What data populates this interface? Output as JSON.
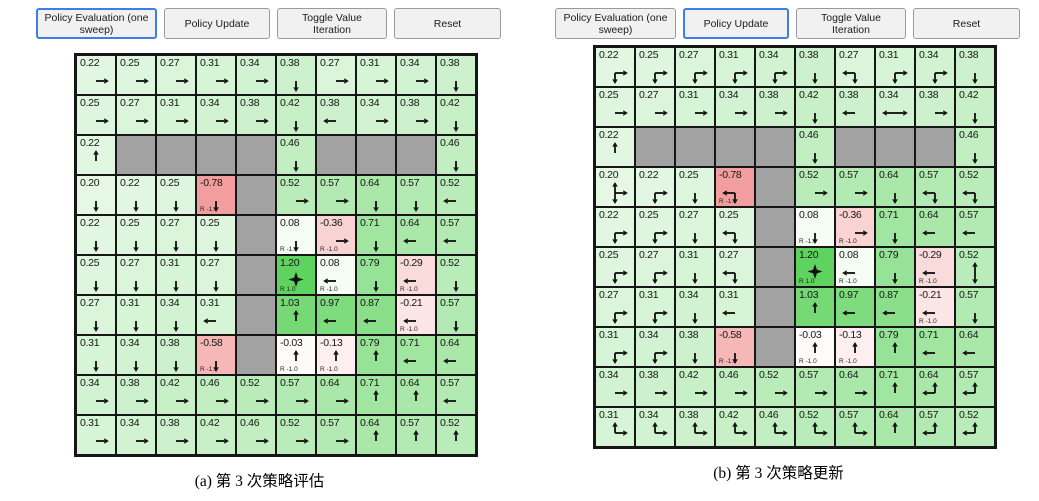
{
  "colors": {
    "value_positive": "#5fd35f",
    "value_negative": "#f29c9c",
    "wall": "#a2a2a2",
    "grid_line": "#161616",
    "active_button_border": "#3b7de9",
    "button_bg": "#f1f1f1",
    "arrow": "#111111"
  },
  "panels": [
    {
      "id": "left",
      "caption": "(a) 第 3 次策略评估",
      "buttons": [
        {
          "name": "policy-evaluation-button",
          "label": "Policy Evaluation (one sweep)",
          "active": true
        },
        {
          "name": "policy-update-button",
          "label": "Policy Update",
          "active": false
        },
        {
          "name": "toggle-value-iteration-button",
          "label": "Toggle Value Iteration",
          "active": false
        },
        {
          "name": "reset-button",
          "label": "Reset",
          "active": false
        }
      ],
      "grid": {
        "rows": 10,
        "cols": 10,
        "cells": [
          [
            {
              "v": "0.22",
              "a": "R"
            },
            {
              "v": "0.25",
              "a": "R"
            },
            {
              "v": "0.27",
              "a": "R"
            },
            {
              "v": "0.31",
              "a": "R"
            },
            {
              "v": "0.34",
              "a": "R"
            },
            {
              "v": "0.38",
              "a": "D"
            },
            {
              "v": "0.27",
              "a": "R"
            },
            {
              "v": "0.31",
              "a": "R"
            },
            {
              "v": "0.34",
              "a": "R"
            },
            {
              "v": "0.38",
              "a": "D"
            }
          ],
          [
            {
              "v": "0.25",
              "a": "R"
            },
            {
              "v": "0.27",
              "a": "R"
            },
            {
              "v": "0.31",
              "a": "R"
            },
            {
              "v": "0.34",
              "a": "R"
            },
            {
              "v": "0.38",
              "a": "R"
            },
            {
              "v": "0.42",
              "a": "D"
            },
            {
              "v": "0.38",
              "a": "L"
            },
            {
              "v": "0.34",
              "a": "R"
            },
            {
              "v": "0.38",
              "a": "R"
            },
            {
              "v": "0.42",
              "a": "D"
            }
          ],
          [
            {
              "v": "0.22",
              "a": "U"
            },
            "W",
            "W",
            "W",
            "W",
            {
              "v": "0.46",
              "a": "D"
            },
            "W",
            "W",
            "W",
            {
              "v": "0.46",
              "a": "D"
            }
          ],
          [
            {
              "v": "0.20",
              "a": "D"
            },
            {
              "v": "0.22",
              "a": "D"
            },
            {
              "v": "0.25",
              "a": "D"
            },
            {
              "v": "-0.78",
              "a": "D",
              "r": "R -1.0"
            },
            "W",
            {
              "v": "0.52",
              "a": "R"
            },
            {
              "v": "0.57",
              "a": "R"
            },
            {
              "v": "0.64",
              "a": "D"
            },
            {
              "v": "0.57",
              "a": "D"
            },
            {
              "v": "0.52",
              "a": "L"
            }
          ],
          [
            {
              "v": "0.22",
              "a": "D"
            },
            {
              "v": "0.25",
              "a": "D"
            },
            {
              "v": "0.27",
              "a": "D"
            },
            {
              "v": "0.25",
              "a": "D"
            },
            "W",
            {
              "v": "0.08",
              "a": "D",
              "r": "R -1.0"
            },
            {
              "v": "-0.36",
              "a": "R",
              "r": "R -1.0"
            },
            {
              "v": "0.71",
              "a": "D"
            },
            {
              "v": "0.64",
              "a": "L"
            },
            {
              "v": "0.57",
              "a": "L"
            }
          ],
          [
            {
              "v": "0.25",
              "a": "D"
            },
            {
              "v": "0.27",
              "a": "D"
            },
            {
              "v": "0.31",
              "a": "D"
            },
            {
              "v": "0.27",
              "a": "D"
            },
            "W",
            {
              "v": "1.20",
              "a": "",
              "star": true,
              "r": "R 1.0"
            },
            {
              "v": "0.08",
              "a": "L",
              "r": "R -1.0"
            },
            {
              "v": "0.79",
              "a": "D"
            },
            {
              "v": "-0.29",
              "a": "L",
              "r": "R -1.0"
            },
            {
              "v": "0.52",
              "a": "D"
            }
          ],
          [
            {
              "v": "0.27",
              "a": "D"
            },
            {
              "v": "0.31",
              "a": "D"
            },
            {
              "v": "0.34",
              "a": "D"
            },
            {
              "v": "0.31",
              "a": "L"
            },
            "W",
            {
              "v": "1.03",
              "a": "U"
            },
            {
              "v": "0.97",
              "a": "L"
            },
            {
              "v": "0.87",
              "a": "L"
            },
            {
              "v": "-0.21",
              "a": "L",
              "r": "R -1.0"
            },
            {
              "v": "0.57",
              "a": "D"
            }
          ],
          [
            {
              "v": "0.31",
              "a": "D"
            },
            {
              "v": "0.34",
              "a": "D"
            },
            {
              "v": "0.38",
              "a": "D"
            },
            {
              "v": "-0.58",
              "a": "D",
              "r": "R -1.0"
            },
            "W",
            {
              "v": "-0.03",
              "a": "U",
              "r": "R -1.0"
            },
            {
              "v": "-0.13",
              "a": "U",
              "r": "R -1.0"
            },
            {
              "v": "0.79",
              "a": "U"
            },
            {
              "v": "0.71",
              "a": "L"
            },
            {
              "v": "0.64",
              "a": "L"
            }
          ],
          [
            {
              "v": "0.34",
              "a": "R"
            },
            {
              "v": "0.38",
              "a": "R"
            },
            {
              "v": "0.42",
              "a": "R"
            },
            {
              "v": "0.46",
              "a": "R"
            },
            {
              "v": "0.52",
              "a": "R"
            },
            {
              "v": "0.57",
              "a": "R"
            },
            {
              "v": "0.64",
              "a": "R"
            },
            {
              "v": "0.71",
              "a": "U"
            },
            {
              "v": "0.64",
              "a": "U"
            },
            {
              "v": "0.57",
              "a": "L"
            }
          ],
          [
            {
              "v": "0.31",
              "a": "R"
            },
            {
              "v": "0.34",
              "a": "R"
            },
            {
              "v": "0.38",
              "a": "R"
            },
            {
              "v": "0.42",
              "a": "R"
            },
            {
              "v": "0.46",
              "a": "R"
            },
            {
              "v": "0.52",
              "a": "R"
            },
            {
              "v": "0.57",
              "a": "R"
            },
            {
              "v": "0.64",
              "a": "U"
            },
            {
              "v": "0.57",
              "a": "U"
            },
            {
              "v": "0.52",
              "a": "U"
            }
          ]
        ]
      }
    },
    {
      "id": "right",
      "caption": "(b) 第 3 次策略更新",
      "buttons": [
        {
          "name": "policy-evaluation-button",
          "label": "Policy Evaluation (one sweep)",
          "active": false
        },
        {
          "name": "policy-update-button",
          "label": "Policy Update",
          "active": true
        },
        {
          "name": "toggle-value-iteration-button",
          "label": "Toggle Value Iteration",
          "active": false
        },
        {
          "name": "reset-button",
          "label": "Reset",
          "active": false
        }
      ],
      "grid": {
        "rows": 10,
        "cols": 10,
        "cells": [
          [
            {
              "v": "0.22",
              "a": "DR"
            },
            {
              "v": "0.25",
              "a": "DR"
            },
            {
              "v": "0.27",
              "a": "DR"
            },
            {
              "v": "0.31",
              "a": "DR"
            },
            {
              "v": "0.34",
              "a": "DR"
            },
            {
              "v": "0.38",
              "a": "D"
            },
            {
              "v": "0.27",
              "a": "DL"
            },
            {
              "v": "0.31",
              "a": "DR"
            },
            {
              "v": "0.34",
              "a": "DR"
            },
            {
              "v": "0.38",
              "a": "D"
            }
          ],
          [
            {
              "v": "0.25",
              "a": "R"
            },
            {
              "v": "0.27",
              "a": "R"
            },
            {
              "v": "0.31",
              "a": "R"
            },
            {
              "v": "0.34",
              "a": "R"
            },
            {
              "v": "0.38",
              "a": "R"
            },
            {
              "v": "0.42",
              "a": "D"
            },
            {
              "v": "0.38",
              "a": "L"
            },
            {
              "v": "0.34",
              "a": "LR"
            },
            {
              "v": "0.38",
              "a": "R"
            },
            {
              "v": "0.42",
              "a": "D"
            }
          ],
          [
            {
              "v": "0.22",
              "a": "U"
            },
            "W",
            "W",
            "W",
            "W",
            {
              "v": "0.46",
              "a": "D"
            },
            "W",
            "W",
            "W",
            {
              "v": "0.46",
              "a": "D"
            }
          ],
          [
            {
              "v": "0.20",
              "a": "UDR"
            },
            {
              "v": "0.22",
              "a": "DR"
            },
            {
              "v": "0.25",
              "a": "D"
            },
            {
              "v": "-0.78",
              "a": "DL",
              "r": "R -1.0"
            },
            "W",
            {
              "v": "0.52",
              "a": "R"
            },
            {
              "v": "0.57",
              "a": "R"
            },
            {
              "v": "0.64",
              "a": "D"
            },
            {
              "v": "0.57",
              "a": "DL"
            },
            {
              "v": "0.52",
              "a": "DL"
            }
          ],
          [
            {
              "v": "0.22",
              "a": "DR"
            },
            {
              "v": "0.25",
              "a": "DR"
            },
            {
              "v": "0.27",
              "a": "D"
            },
            {
              "v": "0.25",
              "a": "DL"
            },
            "W",
            {
              "v": "0.08",
              "a": "D",
              "r": "R -1.0"
            },
            {
              "v": "-0.36",
              "a": "R",
              "r": "R -1.0"
            },
            {
              "v": "0.71",
              "a": "D"
            },
            {
              "v": "0.64",
              "a": "L"
            },
            {
              "v": "0.57",
              "a": "L"
            }
          ],
          [
            {
              "v": "0.25",
              "a": "DR"
            },
            {
              "v": "0.27",
              "a": "DR"
            },
            {
              "v": "0.31",
              "a": "D"
            },
            {
              "v": "0.27",
              "a": "DL"
            },
            "W",
            {
              "v": "1.20",
              "a": "",
              "star": true,
              "r": "R 1.0"
            },
            {
              "v": "0.08",
              "a": "L",
              "r": "R -1.0"
            },
            {
              "v": "0.79",
              "a": "D"
            },
            {
              "v": "-0.29",
              "a": "L",
              "r": "R -1.0"
            },
            {
              "v": "0.52",
              "a": "UD"
            }
          ],
          [
            {
              "v": "0.27",
              "a": "DR"
            },
            {
              "v": "0.31",
              "a": "DR"
            },
            {
              "v": "0.34",
              "a": "D"
            },
            {
              "v": "0.31",
              "a": "L"
            },
            "W",
            {
              "v": "1.03",
              "a": "U"
            },
            {
              "v": "0.97",
              "a": "L"
            },
            {
              "v": "0.87",
              "a": "L"
            },
            {
              "v": "-0.21",
              "a": "L",
              "r": "R -1.0"
            },
            {
              "v": "0.57",
              "a": "D"
            }
          ],
          [
            {
              "v": "0.31",
              "a": "DR"
            },
            {
              "v": "0.34",
              "a": "DR"
            },
            {
              "v": "0.38",
              "a": "D"
            },
            {
              "v": "-0.58",
              "a": "D",
              "r": "R -1.0"
            },
            "W",
            {
              "v": "-0.03",
              "a": "U",
              "r": "R -1.0"
            },
            {
              "v": "-0.13",
              "a": "U",
              "r": "R -1.0"
            },
            {
              "v": "0.79",
              "a": "U"
            },
            {
              "v": "0.71",
              "a": "L"
            },
            {
              "v": "0.64",
              "a": "L"
            }
          ],
          [
            {
              "v": "0.34",
              "a": "R"
            },
            {
              "v": "0.38",
              "a": "R"
            },
            {
              "v": "0.42",
              "a": "R"
            },
            {
              "v": "0.46",
              "a": "R"
            },
            {
              "v": "0.52",
              "a": "R"
            },
            {
              "v": "0.57",
              "a": "R"
            },
            {
              "v": "0.64",
              "a": "R"
            },
            {
              "v": "0.71",
              "a": "U"
            },
            {
              "v": "0.64",
              "a": "UL"
            },
            {
              "v": "0.57",
              "a": "UL"
            }
          ],
          [
            {
              "v": "0.31",
              "a": "UR"
            },
            {
              "v": "0.34",
              "a": "UR"
            },
            {
              "v": "0.38",
              "a": "UR"
            },
            {
              "v": "0.42",
              "a": "UR"
            },
            {
              "v": "0.46",
              "a": "UR"
            },
            {
              "v": "0.52",
              "a": "UR"
            },
            {
              "v": "0.57",
              "a": "UR"
            },
            {
              "v": "0.64",
              "a": "U"
            },
            {
              "v": "0.57",
              "a": "UL"
            },
            {
              "v": "0.52",
              "a": "UL"
            }
          ]
        ]
      }
    }
  ]
}
